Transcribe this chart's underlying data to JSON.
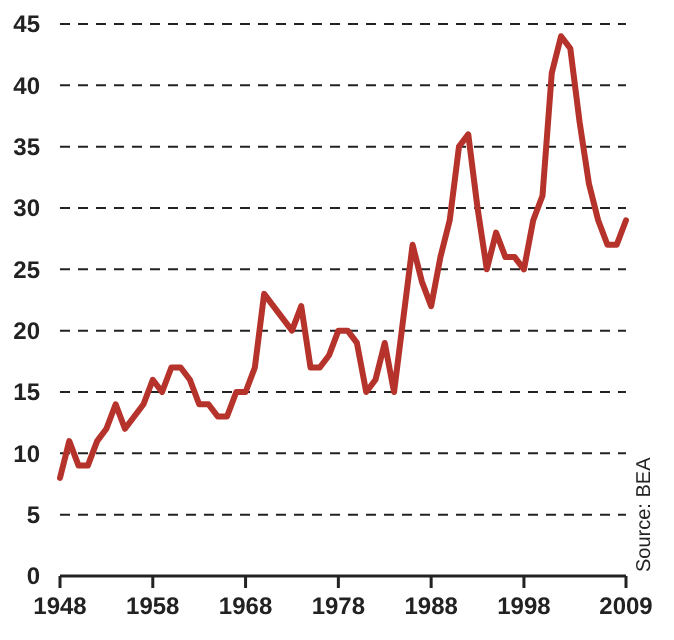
{
  "chart_data": {
    "type": "line",
    "x": [
      1948,
      1949,
      1950,
      1951,
      1952,
      1953,
      1954,
      1955,
      1956,
      1957,
      1958,
      1959,
      1960,
      1961,
      1962,
      1963,
      1964,
      1965,
      1966,
      1967,
      1968,
      1969,
      1970,
      1971,
      1972,
      1973,
      1974,
      1975,
      1976,
      1977,
      1978,
      1979,
      1980,
      1981,
      1982,
      1983,
      1984,
      1985,
      1986,
      1987,
      1988,
      1989,
      1990,
      1991,
      1992,
      1993,
      1994,
      1995,
      1996,
      1997,
      1998,
      1999,
      2000,
      2001,
      2002,
      2003,
      2004,
      2005,
      2006,
      2007,
      2008,
      2009
    ],
    "series": [
      {
        "color": "#b5332b",
        "values": [
          8,
          11,
          9,
          9,
          11,
          12,
          14,
          12,
          13,
          14,
          16,
          15,
          17,
          17,
          16,
          14,
          14,
          13,
          13,
          15,
          15,
          17,
          23,
          22,
          21,
          20,
          22,
          17,
          17,
          18,
          20,
          20,
          19,
          15,
          16,
          19,
          15,
          21,
          27,
          24,
          22,
          26,
          29,
          35,
          36,
          30,
          25,
          28,
          26,
          26,
          25,
          29,
          31,
          41,
          44,
          43,
          37,
          32,
          29,
          27,
          27,
          29
        ]
      }
    ],
    "xlim": [
      1948,
      2009
    ],
    "xticks": [
      1948,
      1958,
      1968,
      1978,
      1988,
      1998,
      2009
    ],
    "ylim": [
      0,
      45
    ],
    "yticks": [
      0,
      5,
      10,
      15,
      20,
      25,
      30,
      35,
      40,
      45
    ],
    "grid": "y",
    "line_style": "solid",
    "marker": "none",
    "annotations": [
      "Source: BEA"
    ]
  }
}
